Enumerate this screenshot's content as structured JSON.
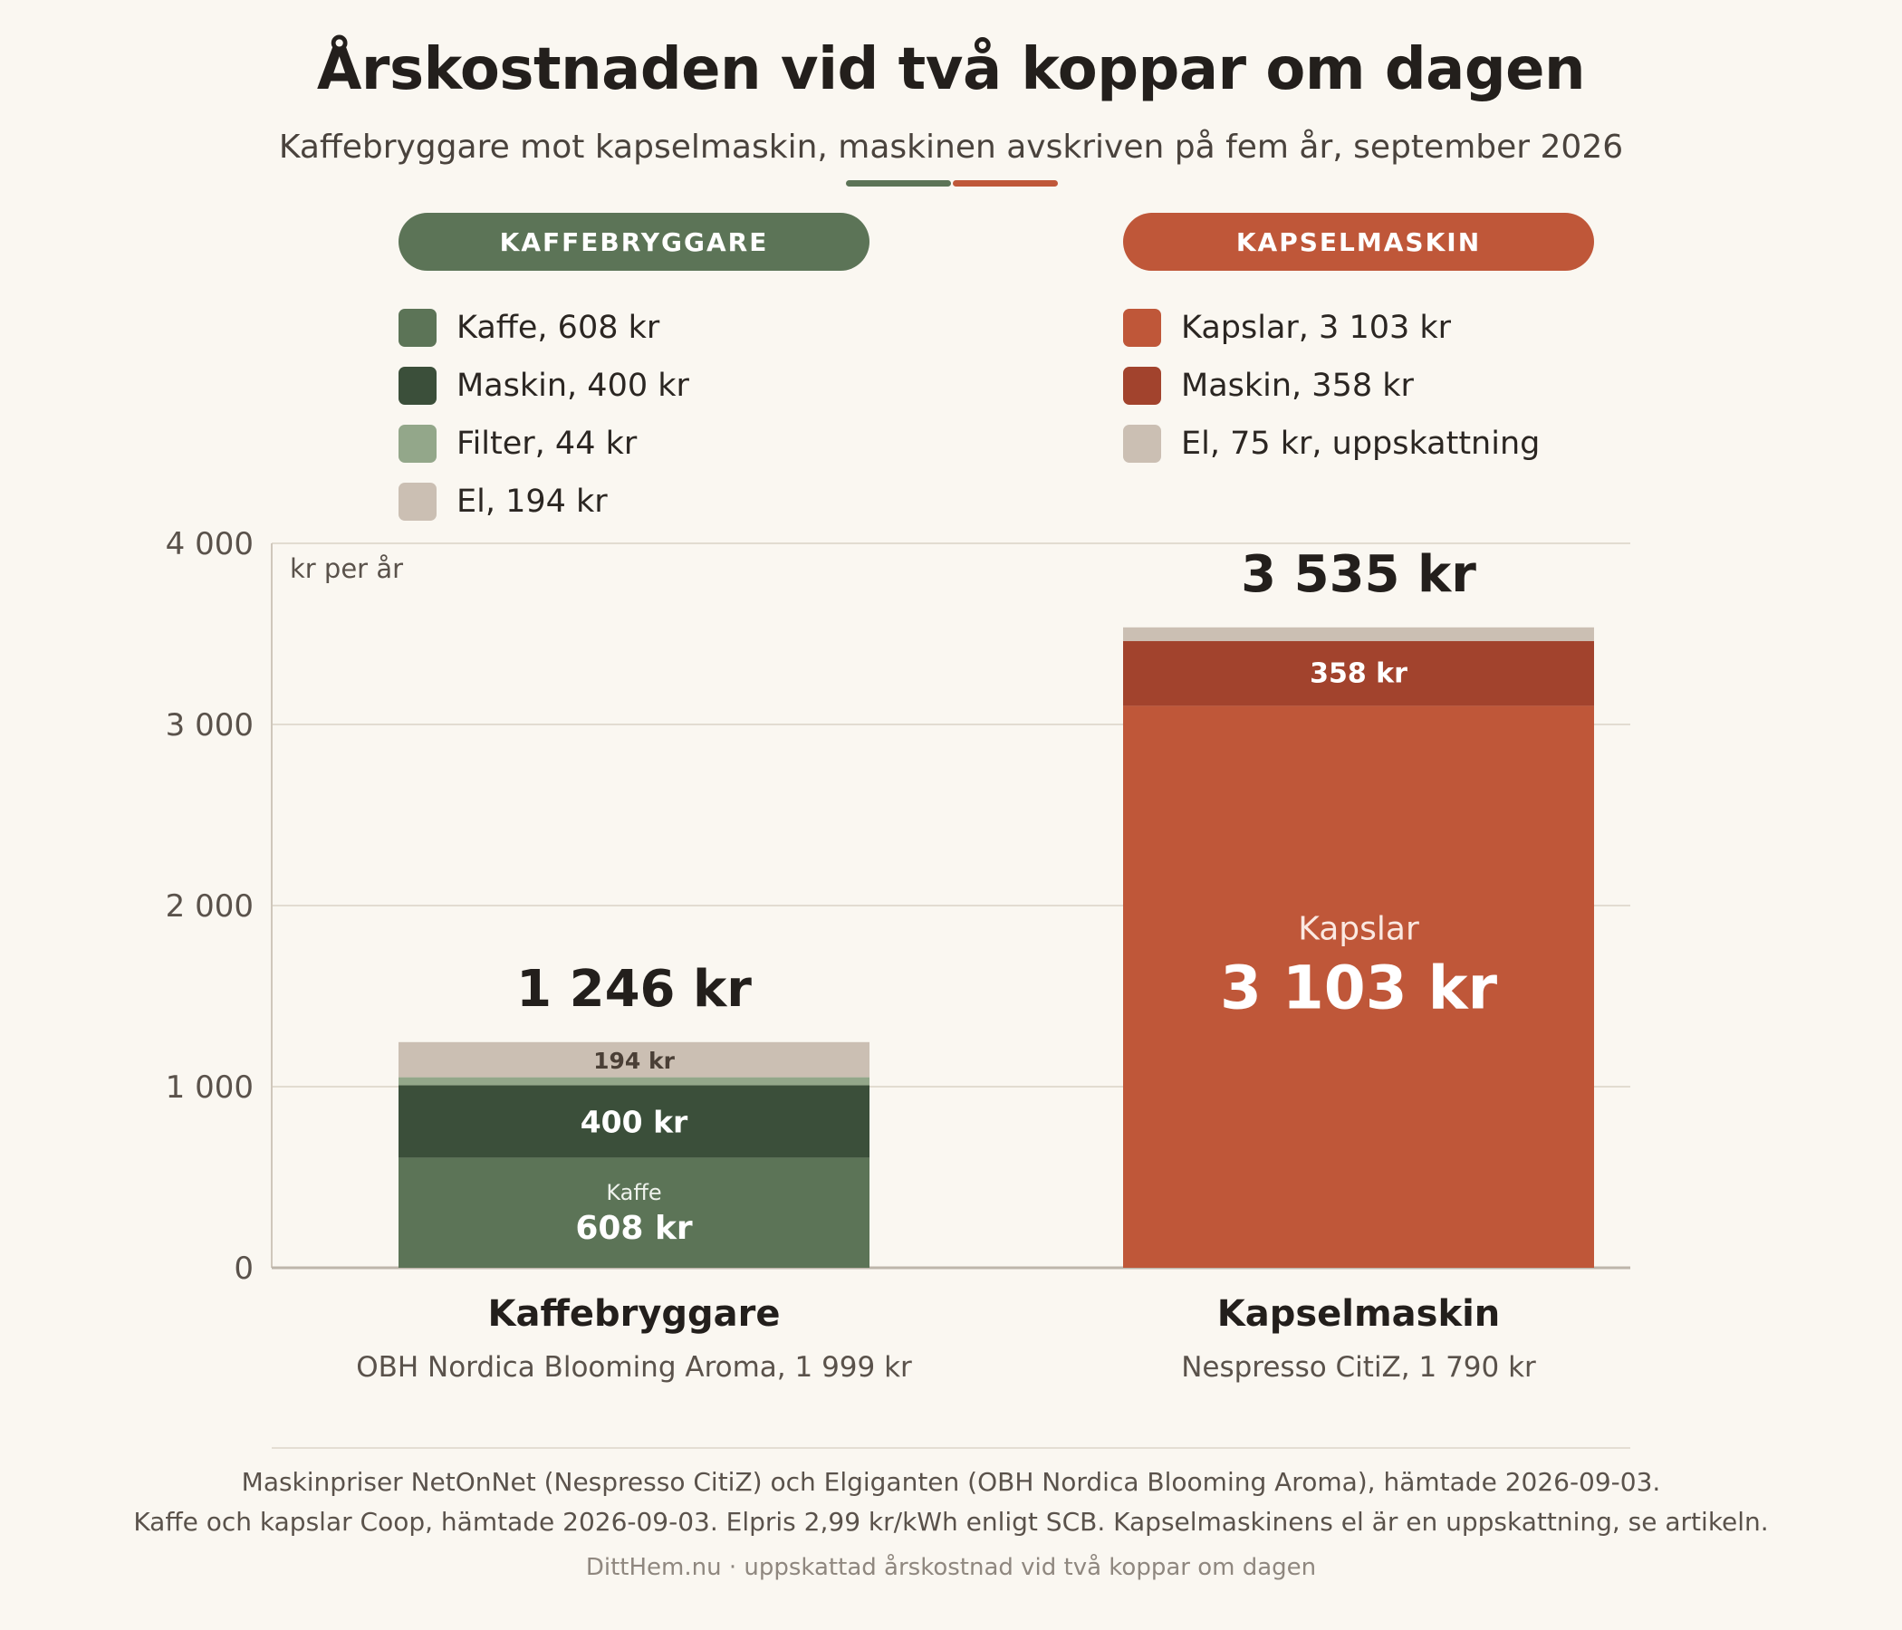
{
  "title": "Årskostnaden vid två koppar om dagen",
  "subtitle": "Kaffebryggare mot kapselmaskin, maskinen avskriven på fem år, september 2026",
  "legend_groups": [
    {
      "header": "KAFFEBRYGGARE",
      "color": "#5c7457",
      "items": [
        {
          "label": "Kaffe, 608 kr",
          "color": "#5c7457"
        },
        {
          "label": "Maskin, 400 kr",
          "color": "#3b4f3a"
        },
        {
          "label": "Filter, 44 kr",
          "color": "#93a78a"
        },
        {
          "label": "El, 194 kr",
          "color": "#cbbfb3"
        }
      ]
    },
    {
      "header": "KAPSELMASKIN",
      "color": "#bf5739",
      "items": [
        {
          "label": "Kapslar, 3 103 kr",
          "color": "#bf5739"
        },
        {
          "label": "Maskin, 358 kr",
          "color": "#a2432d"
        },
        {
          "label": "El, 75 kr, uppskattning",
          "color": "#cbbfb3"
        }
      ]
    }
  ],
  "chart_data": {
    "type": "bar",
    "stacked": true,
    "ylabel": "kr per år",
    "ylim": [
      0,
      4000
    ],
    "yticks": [
      0,
      1000,
      2000,
      3000,
      4000
    ],
    "ytick_labels": [
      "0",
      "1 000",
      "2 000",
      "3 000",
      "4 000"
    ],
    "grid": true,
    "categories": [
      "Kaffebryggare",
      "Kapselmaskin"
    ],
    "category_subtitles": [
      "OBH Nordica Blooming Aroma, 1 999 kr",
      "Nespresso CitiZ, 1 790 kr"
    ],
    "totals": [
      1246,
      3535
    ],
    "total_labels": [
      "1 246 kr",
      "3 535 kr"
    ],
    "stacks": [
      [
        {
          "name": "Kaffe",
          "value": 608,
          "color": "#5c7457",
          "label": "608 kr",
          "sublabel": "Kaffe",
          "label_color": "#ffffff",
          "label_style": "medium"
        },
        {
          "name": "Maskin",
          "value": 400,
          "color": "#3b4f3a",
          "label": "400 kr",
          "label_color": "#ffffff",
          "label_style": "medium"
        },
        {
          "name": "Filter",
          "value": 44,
          "color": "#93a78a"
        },
        {
          "name": "El",
          "value": 194,
          "color": "#cbbfb3",
          "label": "194 kr",
          "label_color": "#4a3f36",
          "label_style": "small"
        }
      ],
      [
        {
          "name": "Kapslar",
          "value": 3103,
          "color": "#bf5739",
          "label": "3 103 kr",
          "sublabel": "Kapslar",
          "label_color": "#ffffff",
          "label_style": "large"
        },
        {
          "name": "Maskin",
          "value": 358,
          "color": "#a2432d",
          "label": "358 kr",
          "label_color": "#ffffff",
          "label_style": "small"
        },
        {
          "name": "El",
          "value": 75,
          "color": "#cbbfb3"
        }
      ]
    ]
  },
  "source_lines": [
    "Maskinpriser NetOnNet (Nespresso CitiZ) och Elgiganten (OBH Nordica Blooming Aroma), hämtade 2026-09-03.",
    "Kaffe och kapslar Coop, hämtade 2026-09-03. Elpris 2,99 kr/kWh enligt SCB. Kapselmaskinens el är en uppskattning, se artikeln."
  ],
  "credit": "DittHem.nu · uppskattad årskostnad vid två koppar om dagen"
}
